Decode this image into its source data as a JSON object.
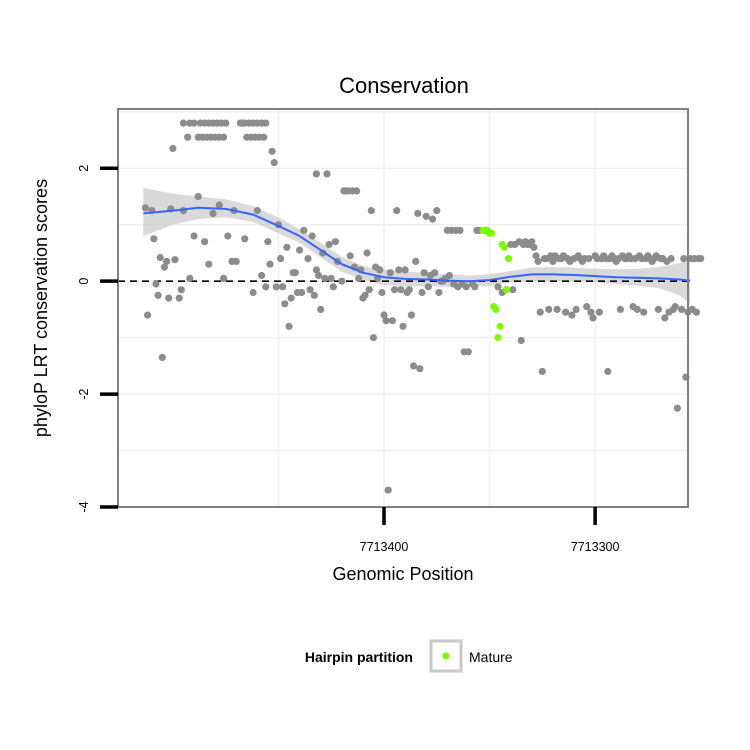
{
  "chart_data": {
    "type": "scatter",
    "title": "Conservation",
    "xlabel": "Genomic Position",
    "ylabel": "phyloP LRT conservation scores",
    "x_reversed": true,
    "xlim": [
      7713526,
      7713256
    ],
    "ylim": [
      -4,
      3.05
    ],
    "x_ticks": [
      7713400,
      7713300
    ],
    "x_tick_labels": [
      "7713400",
      "7713300"
    ],
    "y_ticks": [
      -4,
      -2,
      0,
      2
    ],
    "y_tick_labels": [
      "-4",
      "-2",
      "0",
      "2"
    ],
    "reference_line": {
      "y": 0,
      "style": "dashed"
    },
    "grid": true,
    "legend": {
      "title": "Hairpin partition",
      "position": "bottom",
      "entries": [
        {
          "label": "Mature",
          "color": "#7CFC00"
        }
      ]
    },
    "colors": {
      "background_points": "#8c8c8c",
      "mature": "#7CFC00",
      "smooth": "#3366FF",
      "ribbon": "#cccccc",
      "panel_border": "#808080"
    },
    "series": [
      {
        "name": "",
        "color": "#8c8c8c",
        "points": [
          [
            7713513,
            1.3
          ],
          [
            7713510,
            1.25
          ],
          [
            7713512,
            -0.6
          ],
          [
            7713509,
            0.75
          ],
          [
            7713508,
            -0.05
          ],
          [
            7713507,
            -0.25
          ],
          [
            7713506,
            0.42
          ],
          [
            7713505,
            -1.35
          ],
          [
            7713504,
            0.25
          ],
          [
            7713503,
            0.35
          ],
          [
            7713502,
            -0.3
          ],
          [
            7713501,
            1.28
          ],
          [
            7713500,
            2.35
          ],
          [
            7713499,
            0.38
          ],
          [
            7713497,
            -0.3
          ],
          [
            7713496,
            -0.15
          ],
          [
            7713495,
            2.8
          ],
          [
            7713493,
            2.55
          ],
          [
            7713492,
            2.8
          ],
          [
            7713490,
            2.8
          ],
          [
            7713488,
            2.55
          ],
          [
            7713487,
            2.8
          ],
          [
            7713486,
            2.55
          ],
          [
            7713485,
            2.8
          ],
          [
            7713484,
            2.55
          ],
          [
            7713483,
            2.8
          ],
          [
            7713482,
            2.55
          ],
          [
            7713481,
            2.8
          ],
          [
            7713480,
            2.55
          ],
          [
            7713479,
            2.8
          ],
          [
            7713478,
            2.55
          ],
          [
            7713477,
            2.8
          ],
          [
            7713476,
            2.55
          ],
          [
            7713475,
            2.8
          ],
          [
            7713495,
            1.25
          ],
          [
            7713492,
            0.05
          ],
          [
            7713490,
            0.8
          ],
          [
            7713488,
            1.5
          ],
          [
            7713485,
            0.7
          ],
          [
            7713483,
            0.3
          ],
          [
            7713481,
            1.2
          ],
          [
            7713478,
            1.35
          ],
          [
            7713476,
            0.05
          ],
          [
            7713474,
            0.8
          ],
          [
            7713472,
            0.35
          ],
          [
            7713471,
            1.25
          ],
          [
            7713470,
            0.35
          ],
          [
            7713468,
            2.8
          ],
          [
            7713467,
            2.8
          ],
          [
            7713466,
            2.8
          ],
          [
            7713465,
            2.55
          ],
          [
            7713464,
            2.8
          ],
          [
            7713463,
            2.55
          ],
          [
            7713462,
            2.8
          ],
          [
            7713461,
            2.55
          ],
          [
            7713460,
            2.8
          ],
          [
            7713459,
            2.55
          ],
          [
            7713458,
            2.8
          ],
          [
            7713457,
            2.55
          ],
          [
            7713456,
            2.8
          ],
          [
            7713466,
            0.75
          ],
          [
            7713462,
            -0.2
          ],
          [
            7713460,
            1.25
          ],
          [
            7713458,
            0.1
          ],
          [
            7713456,
            -0.1
          ],
          [
            7713455,
            0.7
          ],
          [
            7713454,
            0.3
          ],
          [
            7713453,
            2.3
          ],
          [
            7713452,
            2.1
          ],
          [
            7713451,
            -0.1
          ],
          [
            7713450,
            1.0
          ],
          [
            7713449,
            0.4
          ],
          [
            7713448,
            -0.1
          ],
          [
            7713447,
            -0.4
          ],
          [
            7713446,
            0.6
          ],
          [
            7713445,
            -0.8
          ],
          [
            7713444,
            -0.3
          ],
          [
            7713443,
            0.15
          ],
          [
            7713442,
            0.15
          ],
          [
            7713441,
            -0.2
          ],
          [
            7713440,
            0.55
          ],
          [
            7713439,
            -0.2
          ],
          [
            7713438,
            0.9
          ],
          [
            7713436,
            0.4
          ],
          [
            7713435,
            -0.15
          ],
          [
            7713434,
            0.8
          ],
          [
            7713433,
            -0.25
          ],
          [
            7713432,
            1.9
          ],
          [
            7713432,
            0.2
          ],
          [
            7713431,
            0.1
          ],
          [
            7713430,
            -0.5
          ],
          [
            7713429,
            0.5
          ],
          [
            7713428,
            0.05
          ],
          [
            7713427,
            1.9
          ],
          [
            7713426,
            0.65
          ],
          [
            7713425,
            0.05
          ],
          [
            7713424,
            -0.1
          ],
          [
            7713423,
            0.7
          ],
          [
            7713422,
            0.35
          ],
          [
            7713420,
            0.0
          ],
          [
            7713419,
            1.6
          ],
          [
            7713418,
            1.6
          ],
          [
            7713417,
            1.6
          ],
          [
            7713416,
            0.45
          ],
          [
            7713415,
            1.6
          ],
          [
            7713414,
            0.25
          ],
          [
            7713413,
            1.6
          ],
          [
            7713412,
            0.05
          ],
          [
            7713411,
            0.2
          ],
          [
            7713410,
            -0.3
          ],
          [
            7713409,
            -0.25
          ],
          [
            7713408,
            0.5
          ],
          [
            7713407,
            -0.15
          ],
          [
            7713406,
            1.25
          ],
          [
            7713405,
            -1.0
          ],
          [
            7713404,
            0.25
          ],
          [
            7713403,
            0.05
          ],
          [
            7713402,
            0.2
          ],
          [
            7713401,
            -0.2
          ],
          [
            7713400,
            -0.6
          ],
          [
            7713399,
            -0.7
          ],
          [
            7713398,
            -3.7
          ],
          [
            7713397,
            0.15
          ],
          [
            7713396,
            -0.7
          ],
          [
            7713395,
            -0.15
          ],
          [
            7713394,
            1.25
          ],
          [
            7713393,
            0.2
          ],
          [
            7713392,
            -0.15
          ],
          [
            7713391,
            -0.8
          ],
          [
            7713390,
            0.2
          ],
          [
            7713389,
            -0.2
          ],
          [
            7713388,
            -0.15
          ],
          [
            7713387,
            -0.6
          ],
          [
            7713386,
            -1.5
          ],
          [
            7713385,
            0.35
          ],
          [
            7713384,
            1.2
          ],
          [
            7713383,
            -1.55
          ],
          [
            7713382,
            -0.2
          ],
          [
            7713381,
            0.15
          ],
          [
            7713380,
            1.15
          ],
          [
            7713379,
            -0.1
          ],
          [
            7713378,
            0.1
          ],
          [
            7713377,
            1.1
          ],
          [
            7713376,
            0.15
          ],
          [
            7713375,
            1.25
          ],
          [
            7713374,
            -0.2
          ],
          [
            7713373,
            0.0
          ],
          [
            7713372,
            0.0
          ],
          [
            7713371,
            0.05
          ],
          [
            7713370,
            0.9
          ],
          [
            7713369,
            0.1
          ],
          [
            7713368,
            0.9
          ],
          [
            7713367,
            -0.05
          ],
          [
            7713366,
            0.9
          ],
          [
            7713365,
            -0.1
          ],
          [
            7713364,
            0.9
          ],
          [
            7713363,
            -0.05
          ],
          [
            7713362,
            -1.25
          ],
          [
            7713361,
            -0.1
          ],
          [
            7713360,
            -1.25
          ],
          [
            7713358,
            -0.05
          ],
          [
            7713357,
            -0.1
          ],
          [
            7713356,
            0.9
          ],
          [
            7713355,
            0.9
          ],
          [
            7713346,
            -0.1
          ],
          [
            7713344,
            -0.2
          ],
          [
            7713342,
            -0.15
          ],
          [
            7713340,
            0.65
          ],
          [
            7713339,
            -0.15
          ],
          [
            7713338,
            0.65
          ],
          [
            7713336,
            0.7
          ],
          [
            7713335,
            -1.05
          ],
          [
            7713334,
            0.65
          ],
          [
            7713333,
            0.7
          ],
          [
            7713332,
            0.65
          ],
          [
            7713331,
            0.65
          ],
          [
            7713330,
            0.7
          ],
          [
            7713329,
            0.6
          ],
          [
            7713328,
            0.45
          ],
          [
            7713327,
            0.35
          ],
          [
            7713326,
            -0.55
          ],
          [
            7713325,
            -1.6
          ],
          [
            7713324,
            0.4
          ],
          [
            7713323,
            0.4
          ],
          [
            7713322,
            -0.5
          ],
          [
            7713321,
            0.45
          ],
          [
            7713320,
            0.35
          ],
          [
            7713319,
            0.45
          ],
          [
            7713318,
            -0.5
          ],
          [
            7713317,
            0.4
          ],
          [
            7713316,
            0.4
          ],
          [
            7713315,
            0.45
          ],
          [
            7713314,
            -0.55
          ],
          [
            7713313,
            0.4
          ],
          [
            7713312,
            0.35
          ],
          [
            7713311,
            -0.6
          ],
          [
            7713310,
            0.4
          ],
          [
            7713309,
            -0.5
          ],
          [
            7713308,
            0.45
          ],
          [
            7713307,
            0.4
          ],
          [
            7713306,
            0.35
          ],
          [
            7713305,
            0.4
          ],
          [
            7713304,
            -0.45
          ],
          [
            7713303,
            0.4
          ],
          [
            7713302,
            -0.55
          ],
          [
            7713301,
            -0.65
          ],
          [
            7713300,
            0.45
          ],
          [
            7713299,
            0.4
          ],
          [
            7713298,
            -0.55
          ],
          [
            7713297,
            0.4
          ],
          [
            7713296,
            0.45
          ],
          [
            7713295,
            0.4
          ],
          [
            7713294,
            -1.6
          ],
          [
            7713293,
            0.4
          ],
          [
            7713292,
            0.45
          ],
          [
            7713291,
            0.4
          ],
          [
            7713290,
            0.35
          ],
          [
            7713289,
            0.4
          ],
          [
            7713288,
            -0.5
          ],
          [
            7713287,
            0.45
          ],
          [
            7713286,
            0.4
          ],
          [
            7713285,
            0.4
          ],
          [
            7713284,
            0.45
          ],
          [
            7713283,
            0.4
          ],
          [
            7713282,
            -0.45
          ],
          [
            7713281,
            0.4
          ],
          [
            7713280,
            -0.5
          ],
          [
            7713279,
            0.45
          ],
          [
            7713278,
            0.4
          ],
          [
            7713277,
            -0.55
          ],
          [
            7713276,
            0.4
          ],
          [
            7713275,
            0.45
          ],
          [
            7713274,
            0.4
          ],
          [
            7713273,
            0.35
          ],
          [
            7713272,
            0.4
          ],
          [
            7713271,
            0.45
          ],
          [
            7713270,
            -0.5
          ],
          [
            7713269,
            0.4
          ],
          [
            7713268,
            0.4
          ],
          [
            7713267,
            -0.65
          ],
          [
            7713266,
            0.35
          ],
          [
            7713265,
            -0.55
          ],
          [
            7713264,
            0.4
          ],
          [
            7713263,
            -0.5
          ],
          [
            7713262,
            -0.45
          ],
          [
            7713261,
            -2.25
          ],
          [
            7713259,
            -0.5
          ],
          [
            7713258,
            0.4
          ],
          [
            7713257,
            -1.7
          ],
          [
            7713256,
            -0.55
          ],
          [
            7713255,
            0.4
          ],
          [
            7713254,
            -0.5
          ],
          [
            7713253,
            0.4
          ],
          [
            7713252,
            -0.55
          ],
          [
            7713251,
            0.4
          ],
          [
            7713250,
            0.4
          ]
        ]
      },
      {
        "name": "Mature",
        "color": "#7CFC00",
        "points": [
          [
            7713353,
            0.9
          ],
          [
            7713352,
            0.9
          ],
          [
            7713351,
            0.9
          ],
          [
            7713350,
            0.85
          ],
          [
            7713349,
            0.85
          ],
          [
            7713348,
            -0.45
          ],
          [
            7713347,
            -0.5
          ],
          [
            7713346,
            -1.0
          ],
          [
            7713345,
            -0.8
          ],
          [
            7713344,
            0.65
          ],
          [
            7713343,
            0.6
          ],
          [
            7713342,
            -0.15
          ],
          [
            7713341,
            0.4
          ]
        ]
      }
    ],
    "smooth_line": {
      "x": [
        7713514,
        7713500,
        7713488,
        7713475,
        7713462,
        7713450,
        7713440,
        7713430,
        7713420,
        7713410,
        7713400,
        7713390,
        7713380,
        7713370,
        7713360,
        7713350,
        7713340,
        7713330,
        7713320,
        7713310,
        7713300,
        7713290,
        7713280,
        7713270,
        7713260,
        7713255
      ],
      "y": [
        1.2,
        1.25,
        1.3,
        1.28,
        1.18,
        0.98,
        0.8,
        0.55,
        0.3,
        0.15,
        0.07,
        0.04,
        0.03,
        0.01,
        0.0,
        0.02,
        0.08,
        0.12,
        0.12,
        0.11,
        0.09,
        0.07,
        0.06,
        0.05,
        0.03,
        0.01
      ],
      "ribbon_low": [
        0.8,
        1.0,
        1.1,
        1.13,
        1.05,
        0.85,
        0.68,
        0.42,
        0.17,
        0.03,
        -0.07,
        -0.09,
        -0.09,
        -0.1,
        -0.1,
        -0.08,
        -0.02,
        0.0,
        0.0,
        0.0,
        -0.02,
        -0.05,
        -0.08,
        -0.12,
        -0.25,
        -0.4
      ],
      "ribbon_high": [
        1.65,
        1.55,
        1.5,
        1.45,
        1.33,
        1.13,
        0.92,
        0.68,
        0.43,
        0.27,
        0.2,
        0.17,
        0.15,
        0.12,
        0.1,
        0.12,
        0.18,
        0.24,
        0.25,
        0.24,
        0.22,
        0.21,
        0.22,
        0.25,
        0.32,
        0.42
      ]
    }
  }
}
